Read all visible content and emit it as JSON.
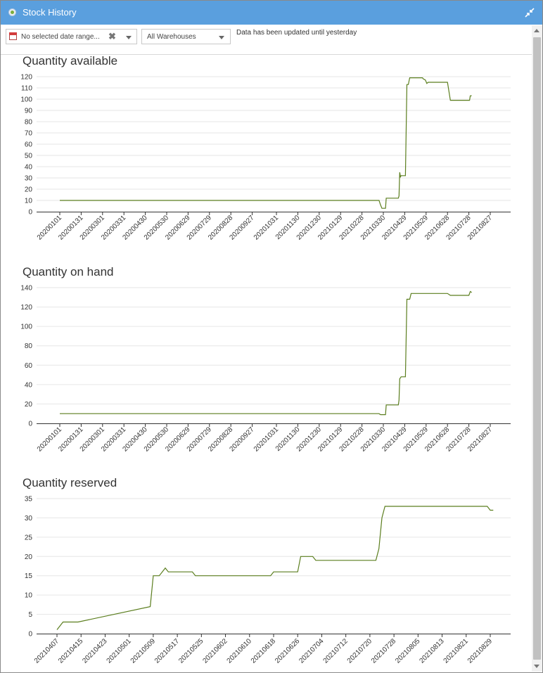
{
  "window": {
    "title": "Stock History"
  },
  "toolbar": {
    "date_range_placeholder": "No selected date range...",
    "warehouse_selected": "All Warehouses",
    "status_text": "Data has been updated until yesterday"
  },
  "colors": {
    "titlebar": "#5a9fde",
    "series": "#5b7e1e",
    "grid": "#e6e6e6"
  },
  "charts": [
    {
      "title": "Quantity available"
    },
    {
      "title": "Quantity on hand"
    },
    {
      "title": "Quantity reserved"
    }
  ],
  "chart_data": [
    {
      "type": "line",
      "title": "Quantity available",
      "ylim": [
        0,
        120
      ],
      "yticks": [
        0,
        10,
        20,
        30,
        40,
        50,
        60,
        70,
        80,
        90,
        100,
        110,
        120
      ],
      "xticks": [
        "20200101",
        "20200131",
        "20200301",
        "20200331",
        "20200430",
        "20200530",
        "20200629",
        "20200729",
        "20200828",
        "20200927",
        "20201031",
        "20201130",
        "20201230",
        "20210129",
        "20210228",
        "20210330",
        "20210429",
        "20210529",
        "20210628",
        "20210728",
        "20210827"
      ],
      "series": [
        {
          "x": [
            "20200101",
            "20210324",
            "20210326",
            "20210328",
            "20210331",
            "20210402",
            "20210403",
            "20210404",
            "20210420",
            "20210421",
            "20210422",
            "20210423",
            "20210424",
            "20210427",
            "20210430",
            "20210502",
            "20210504",
            "20210506",
            "20210524",
            "20210525",
            "20210528",
            "20210530",
            "20210601",
            "20210628",
            "20210702",
            "20210729",
            "20210730",
            "20210801"
          ],
          "y": [
            10,
            10,
            6,
            3,
            3,
            3,
            12,
            12,
            12,
            14,
            35,
            31,
            32,
            32,
            32,
            113,
            113,
            119,
            119,
            118,
            117,
            114,
            115,
            115,
            99,
            99,
            103,
            103
          ]
        }
      ]
    },
    {
      "type": "line",
      "title": "Quantity on hand",
      "ylim": [
        0,
        140
      ],
      "yticks": [
        0,
        20,
        40,
        60,
        80,
        100,
        120,
        140
      ],
      "xticks": [
        "20200101",
        "20200131",
        "20200301",
        "20200331",
        "20200430",
        "20200530",
        "20200629",
        "20200729",
        "20200828",
        "20200927",
        "20201031",
        "20201130",
        "20201230",
        "20210129",
        "20210228",
        "20210330",
        "20210429",
        "20210529",
        "20210628",
        "20210728",
        "20210827"
      ],
      "series": [
        {
          "x": [
            "20200101",
            "20210324",
            "20210326",
            "20210402",
            "20210403",
            "20210404",
            "20210420",
            "20210421",
            "20210422",
            "20210424",
            "20210427",
            "20210430",
            "20210502",
            "20210506",
            "20210508",
            "20210628",
            "20210702",
            "20210728",
            "20210730",
            "20210801"
          ],
          "y": [
            10,
            10,
            9,
            9,
            19,
            19,
            19,
            24,
            46,
            48,
            48,
            48,
            128,
            128,
            134,
            134,
            132,
            132,
            136,
            135
          ]
        }
      ]
    },
    {
      "type": "line",
      "title": "Quantity reserved",
      "ylim": [
        0,
        35
      ],
      "yticks": [
        0,
        5,
        10,
        15,
        20,
        25,
        30,
        35
      ],
      "xticks": [
        "20210407",
        "20210415",
        "20210423",
        "20210501",
        "20210509",
        "20210517",
        "20210525",
        "20210602",
        "20210610",
        "20210618",
        "20210626",
        "20210704",
        "20210712",
        "20210720",
        "20210728",
        "20210805",
        "20210813",
        "20210821",
        "20210829"
      ],
      "series": [
        {
          "x": [
            "20210407",
            "20210408",
            "20210409",
            "20210410",
            "20210411",
            "20210412",
            "20210413",
            "20210414",
            "20210508",
            "20210509",
            "20210510",
            "20210511",
            "20210512",
            "20210513",
            "20210514",
            "20210515",
            "20210516",
            "20210517",
            "20210518",
            "20210519",
            "20210520",
            "20210521",
            "20210522",
            "20210523",
            "20210524",
            "20210525",
            "20210617",
            "20210618",
            "20210619",
            "20210620",
            "20210621",
            "20210626",
            "20210627",
            "20210628",
            "20210701",
            "20210702",
            "20210703",
            "20210704",
            "20210722",
            "20210723",
            "20210724",
            "20210725",
            "20210726",
            "20210727",
            "20210828",
            "20210829",
            "20210830"
          ],
          "y": [
            1,
            2,
            3,
            3,
            3,
            3,
            3,
            3,
            7,
            15,
            15,
            15,
            16,
            17,
            16,
            16,
            16,
            16,
            16,
            16,
            16,
            16,
            16,
            15,
            15,
            15,
            15,
            16,
            16,
            16,
            16,
            16,
            20,
            20,
            20,
            19,
            19,
            19,
            19,
            22,
            30,
            33,
            33,
            33,
            33,
            32,
            32
          ]
        }
      ]
    }
  ]
}
